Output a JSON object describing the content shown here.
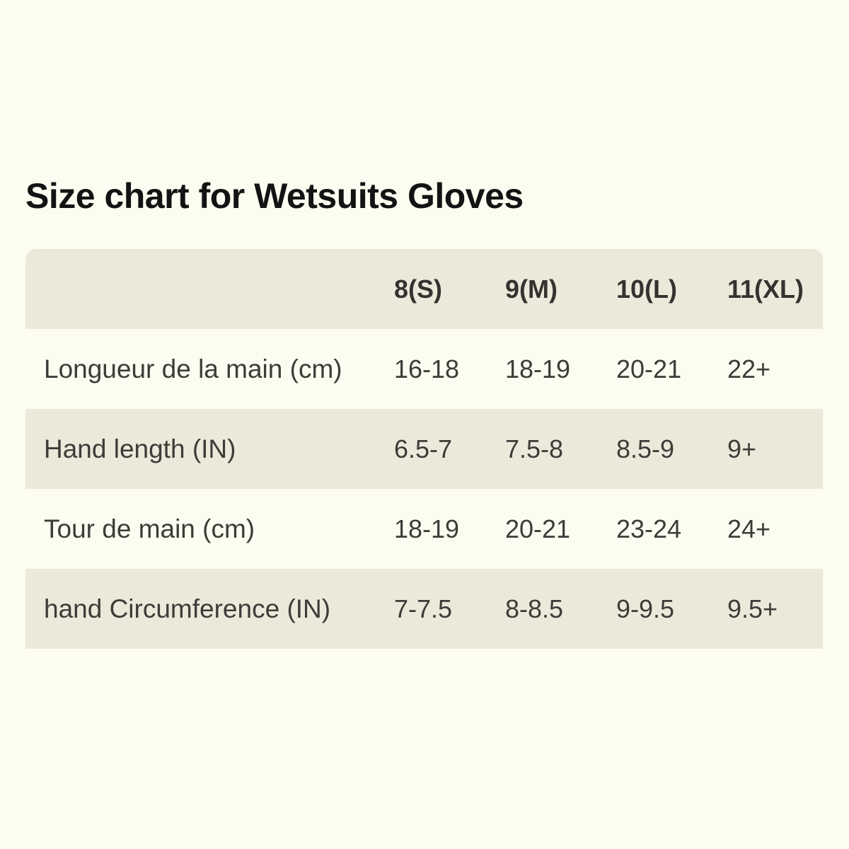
{
  "title": "Size chart for Wetsuits Gloves",
  "chart_data": {
    "type": "table",
    "title": "Size chart for Wetsuits Gloves",
    "corner_label": "",
    "columns": [
      "8(S)",
      "9(M)",
      "10(L)",
      "11(XL)"
    ],
    "rows": [
      {
        "label": "Longueur de la main (cm)",
        "values": [
          "16-18",
          "18-19",
          "20-21",
          "22+"
        ]
      },
      {
        "label": "Hand length (IN)",
        "values": [
          "6.5-7",
          "7.5-8",
          "8.5-9",
          "9+"
        ]
      },
      {
        "label": "Tour de main (cm)",
        "values": [
          "18-19",
          "20-21",
          "23-24",
          "24+"
        ]
      },
      {
        "label": "hand Circumference (IN)",
        "values": [
          "7-7.5",
          "8-8.5",
          "9-9.5",
          "9.5+"
        ]
      }
    ],
    "layout": {
      "legend": "none",
      "grid": "off",
      "banding": "alternate-rows",
      "header_corner_radius_px": 14
    },
    "colors": {
      "page_bg": "#FCFCF0",
      "band_bg": "#ECE9DB",
      "text": "#3D3C38",
      "header_text": "#343330",
      "title": "#131313"
    }
  }
}
